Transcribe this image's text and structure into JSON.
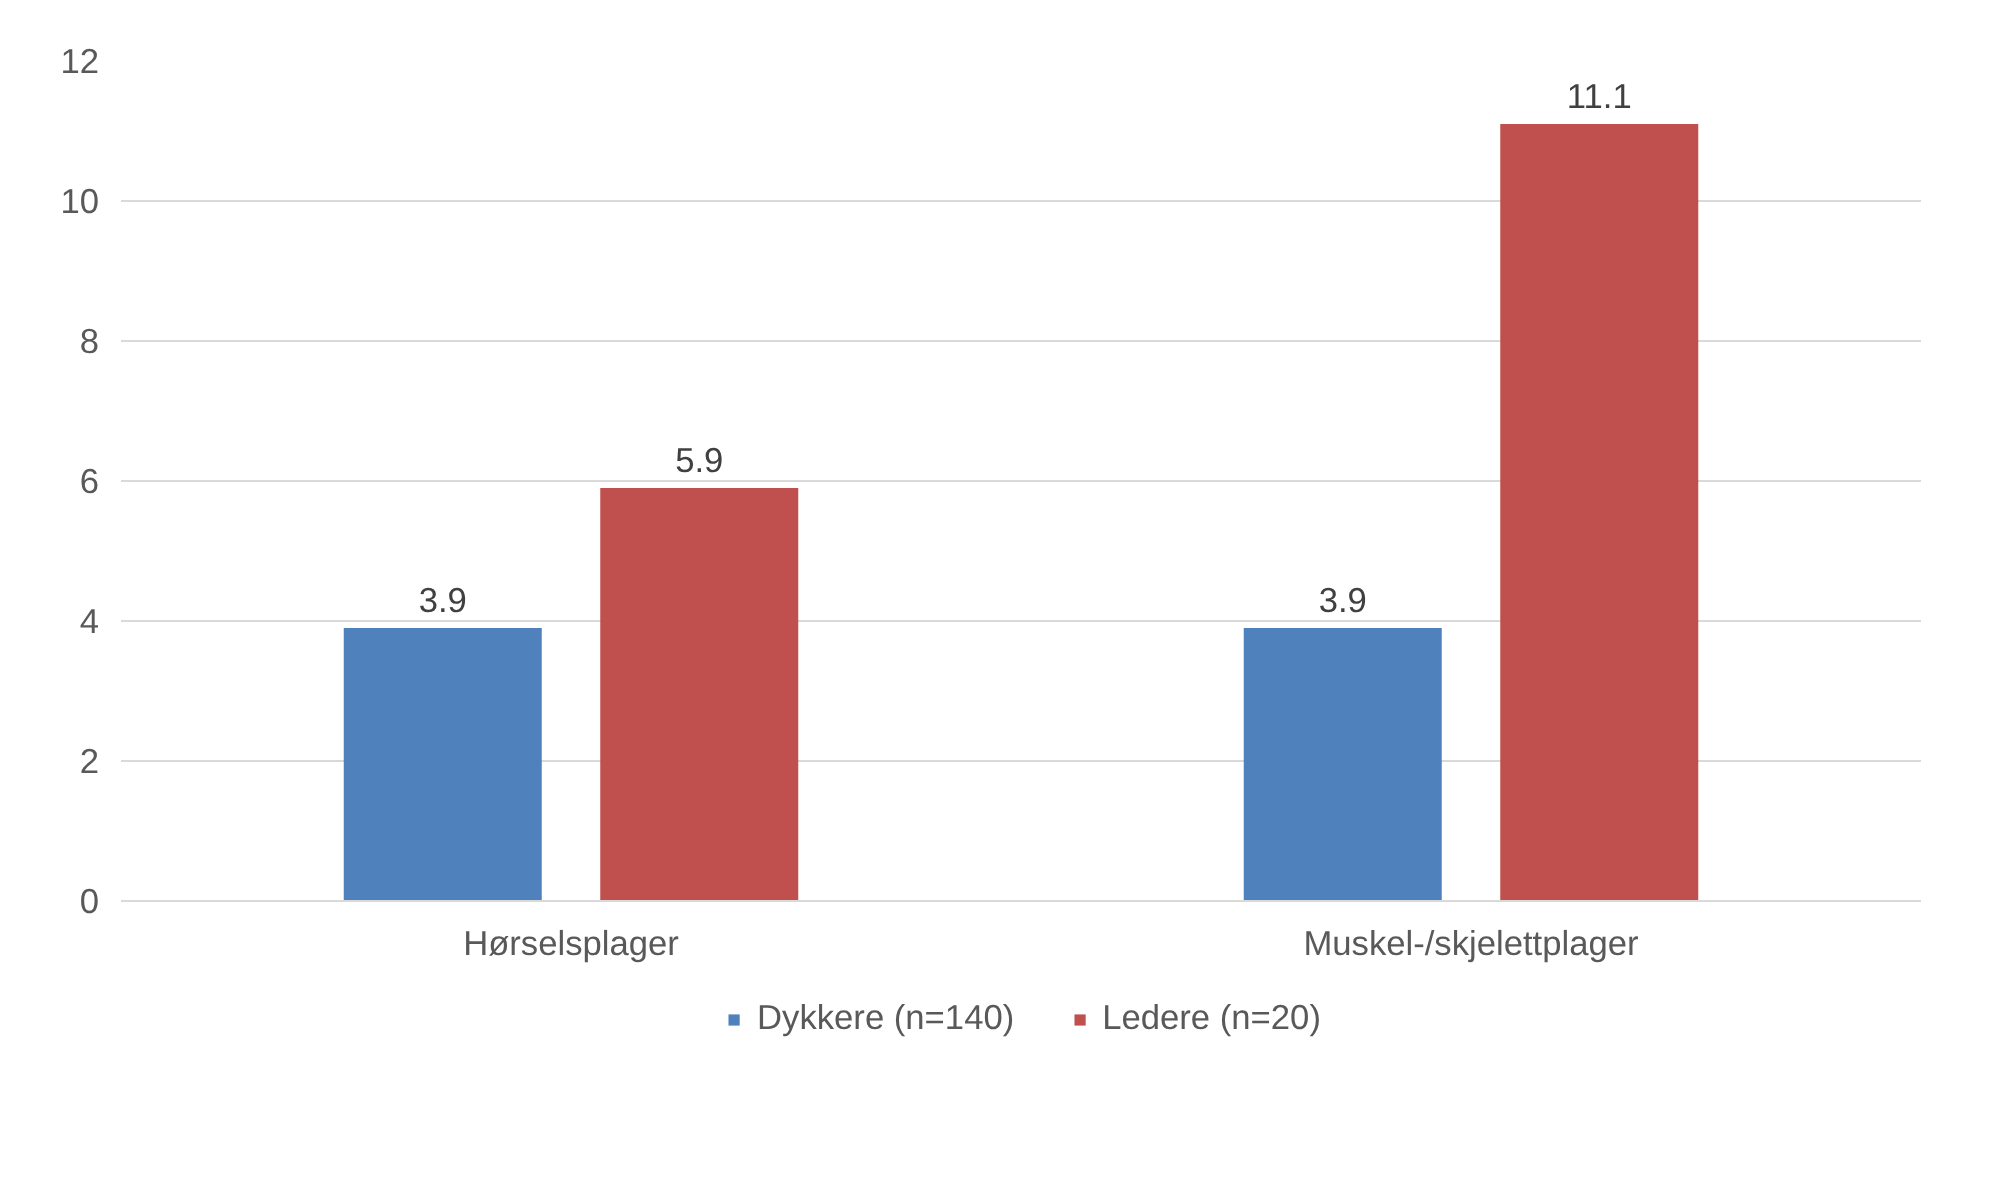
{
  "chart_data": {
    "type": "bar",
    "categories": [
      "Hørselsplager",
      "Muskel-/skjelettplager"
    ],
    "series": [
      {
        "name": "Dykkere (n=140)",
        "color": "#4f81bd",
        "values": [
          3.9,
          3.9
        ]
      },
      {
        "name": "Ledere (n=20)",
        "color": "#c0504d",
        "values": [
          5.9,
          11.1
        ]
      }
    ],
    "ylim": [
      0,
      12
    ],
    "yticks": [
      0,
      2,
      4,
      6,
      8,
      10,
      12
    ],
    "grid": "y",
    "legend": "bottom",
    "data_labels": true
  }
}
